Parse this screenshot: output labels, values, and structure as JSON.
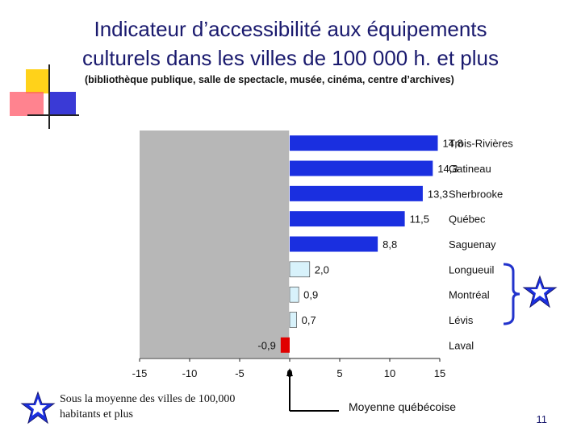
{
  "slide": {
    "title_line1": "Indicateur d’accessibilité aux équipements",
    "title_line2": "culturels dans les villes de 100 000 h. et plus",
    "subtitle": "(bibliothèque publique, salle de spectacle, musée, cinéma, centre d’archives)",
    "legend_below_avg": "Sous la moyenne des villes de 100,000",
    "legend_below_avg_line2": "habitants et plus",
    "legend_quebec_avg": "Moyenne québécoise",
    "page_number": "11",
    "colors": {
      "title": "#1a1a6e",
      "above": "#1a2fe0",
      "below_light": "#d8f2fb",
      "negative": "#e00000",
      "plot_bg": "#b7b7b7"
    }
  },
  "chart_data": {
    "type": "bar",
    "orientation": "horizontal",
    "categories": [
      "Trois-Rivières",
      "Gatineau",
      "Sherbrooke",
      "Québec",
      "Saguenay",
      "Longueuil",
      "Montréal",
      "Lévis",
      "Laval"
    ],
    "values": [
      14.8,
      14.3,
      13.3,
      11.5,
      8.8,
      2.0,
      0.9,
      0.7,
      -0.9
    ],
    "value_labels": [
      "14,8",
      "14,3",
      "13,3",
      "11,5",
      "8,8",
      "2,0",
      "0,9",
      "0,7",
      "-0,9"
    ],
    "xlim": [
      -15,
      15
    ],
    "xticks": [
      -15,
      -10,
      -5,
      0,
      5,
      10,
      15
    ],
    "grid": false,
    "title": "",
    "xlabel": "",
    "ylabel": ""
  }
}
